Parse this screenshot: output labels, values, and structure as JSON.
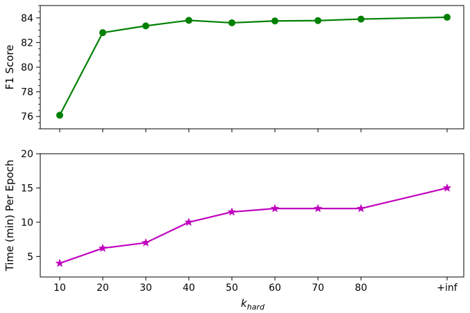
{
  "chart_data": [
    {
      "type": "line",
      "x_categories": [
        "10",
        "20",
        "30",
        "40",
        "50",
        "60",
        "70",
        "80",
        "+inf"
      ],
      "x_positions": [
        10,
        20,
        30,
        40,
        50,
        60,
        70,
        80,
        100
      ],
      "series": [
        {
          "values": [
            76.1,
            82.8,
            83.35,
            83.8,
            83.6,
            83.75,
            83.78,
            83.9,
            84.05
          ],
          "color": "#008000",
          "marker": "circle"
        }
      ],
      "ylabel": "F1 Score",
      "ylim": [
        75,
        85
      ],
      "yticks": [
        "76",
        "78",
        "80",
        "82",
        "84"
      ],
      "ytick_values": [
        76,
        78,
        80,
        82,
        84
      ],
      "grid": false
    },
    {
      "type": "line",
      "x_categories": [
        "10",
        "20",
        "30",
        "40",
        "50",
        "60",
        "70",
        "80",
        "+inf"
      ],
      "x_positions": [
        10,
        20,
        30,
        40,
        50,
        60,
        70,
        80,
        100
      ],
      "series": [
        {
          "values": [
            4.0,
            6.2,
            7.0,
            10.0,
            11.5,
            12.0,
            12.0,
            12.0,
            15.0
          ],
          "color": "#bf00bf",
          "marker": "star"
        }
      ],
      "ylabel": "Time (min) Per Epoch",
      "xlabel": "k",
      "xlabel_subscript": "hard",
      "ylim": [
        2,
        20
      ],
      "yticks": [
        "5",
        "10",
        "15",
        "20"
      ],
      "ytick_values": [
        5,
        10,
        15,
        20
      ],
      "grid": false
    }
  ]
}
